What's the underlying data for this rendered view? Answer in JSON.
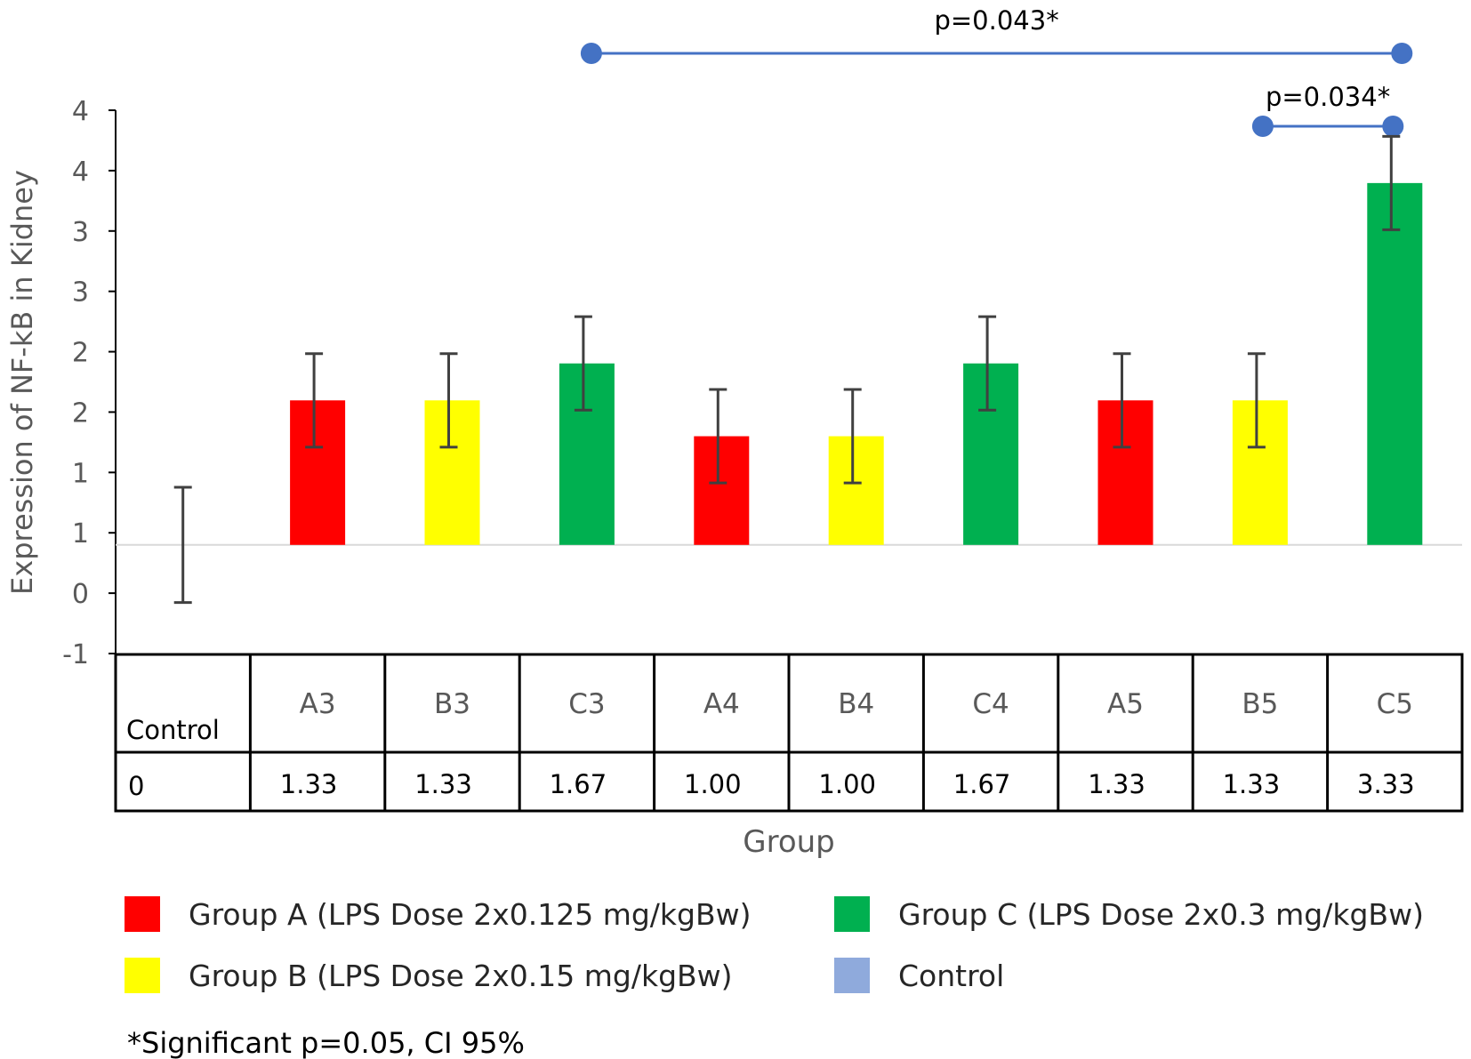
{
  "chart_data": {
    "type": "bar",
    "ylabel": "Expression of NF-kB in Kidney",
    "xlabel": "Group",
    "ylim": [
      -1,
      4
    ],
    "y_tick_labels": [
      "-1",
      "0",
      "1",
      "1",
      "2",
      "2",
      "3",
      "3",
      "4",
      "4"
    ],
    "categories": [
      "Control",
      "A3",
      "B3",
      "C3",
      "A4",
      "B4",
      "C4",
      "A5",
      "B5",
      "C5"
    ],
    "values": [
      0,
      1.33,
      1.33,
      1.67,
      1.0,
      1.0,
      1.67,
      1.33,
      1.33,
      3.33
    ],
    "value_labels": [
      "0",
      "1.33",
      "1.33",
      "1.67",
      "1.00",
      "1.00",
      "1.67",
      "1.33",
      "1.33",
      "3.33"
    ],
    "error_half_width": [
      0.53,
      0.43,
      0.43,
      0.43,
      0.43,
      0.43,
      0.43,
      0.43,
      0.43,
      0.43
    ],
    "bar_groups": [
      "Control",
      "A",
      "B",
      "C",
      "A",
      "B",
      "C",
      "A",
      "B",
      "C"
    ],
    "colors": {
      "A": "#ff0000",
      "B": "#ffff00",
      "C": "#00b050",
      "Control": "#8faadc",
      "sig_line": "#4472c4",
      "error": "#404040"
    },
    "significance": [
      {
        "from": "C3",
        "to": "C5",
        "label": "p=0.043*"
      },
      {
        "from": "B5",
        "to": "C5",
        "label": "p=0.034*"
      }
    ],
    "legend": [
      {
        "group": "A",
        "label": "Group A (LPS Dose 2x0.125 mg/kgBw)"
      },
      {
        "group": "C",
        "label": "Group C (LPS Dose 2x0.3 mg/kgBw)"
      },
      {
        "group": "B",
        "label": "Group  B (LPS Dose 2x0.15 mg/kgBw)"
      },
      {
        "group": "Control",
        "label": "Control"
      }
    ],
    "note": "*Significant p=0.05, CI 95%"
  }
}
